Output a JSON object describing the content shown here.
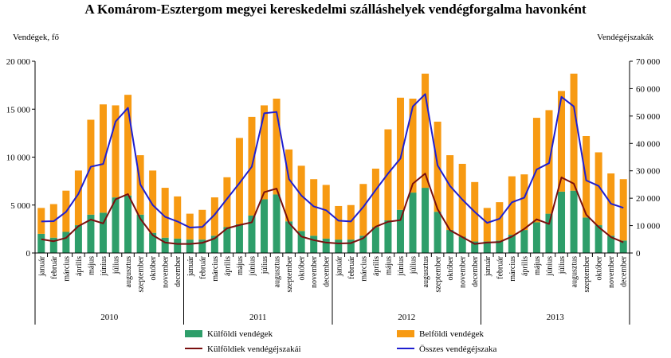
{
  "chart_data": {
    "type": "bar",
    "title": "A Komárom-Esztergom megyei kereskedelmi szálláshelyek vendégforgalma havonként",
    "y_left_label": "Vendégek, fő",
    "y_right_label": "Vendégéjszakák",
    "y_left_range": [
      0,
      20000
    ],
    "y_right_range": [
      0,
      70000
    ],
    "y_left_ticks": [
      "0",
      "5 000",
      "10 000",
      "15 000",
      "20 000"
    ],
    "y_right_ticks": [
      "0",
      "10 000",
      "20 000",
      "30 000",
      "40 000",
      "50 000",
      "60 000",
      "70 000"
    ],
    "months": [
      "január",
      "február",
      "március",
      "április",
      "május",
      "június",
      "július",
      "augusztus",
      "szeptember",
      "október",
      "november",
      "december"
    ],
    "years": [
      "2010",
      "2011",
      "2012",
      "2013"
    ],
    "bar_stack": "stacked",
    "series": [
      {
        "name": "Külföldi vendégek",
        "kind": "bar",
        "axis": "left",
        "color": "#2e9e6a",
        "values": [
          2000,
          1600,
          2200,
          2900,
          4000,
          4200,
          5800,
          6000,
          4000,
          2100,
          1600,
          1500,
          1400,
          1400,
          1800,
          2700,
          3000,
          3900,
          5600,
          6100,
          3300,
          2300,
          1800,
          1500,
          1400,
          1400,
          1800,
          2700,
          3400,
          4500,
          6300,
          6800,
          4300,
          2400,
          1700,
          1200,
          1200,
          1300,
          1900,
          2400,
          3200,
          4100,
          6400,
          6500,
          3700,
          2900,
          1800,
          1300
        ]
      },
      {
        "name": "Belföldi vendégek",
        "kind": "bar",
        "axis": "left",
        "color": "#f79a12",
        "values": [
          2700,
          3500,
          4300,
          5700,
          9900,
          11300,
          9600,
          10500,
          6200,
          6500,
          5200,
          4400,
          2700,
          3100,
          4000,
          5200,
          9000,
          10300,
          9800,
          10000,
          7500,
          6800,
          5900,
          5600,
          3500,
          3600,
          5400,
          6100,
          9500,
          11700,
          9800,
          11900,
          9400,
          7800,
          7600,
          6200,
          3500,
          4000,
          6100,
          5800,
          10900,
          10800,
          10500,
          12200,
          8500,
          7600,
          6500,
          6400
        ]
      },
      {
        "name": "Külföldiek vendégéjszakái",
        "kind": "line",
        "axis": "right",
        "color": "#7a0f0f",
        "values": [
          5000,
          4300,
          5500,
          9800,
          12200,
          10800,
          19600,
          21500,
          12500,
          6500,
          3800,
          3300,
          3300,
          3700,
          5300,
          9000,
          10200,
          11200,
          22200,
          23500,
          11000,
          6000,
          4700,
          3800,
          3500,
          3600,
          5400,
          9600,
          11400,
          12000,
          25300,
          29000,
          16000,
          8300,
          5800,
          3300,
          3800,
          4000,
          6000,
          8800,
          12300,
          10600,
          27600,
          25300,
          14000,
          9500,
          5800,
          3900
        ]
      },
      {
        "name": "Összes vendégéjszaka",
        "kind": "line",
        "axis": "right",
        "color": "#1f1fd0",
        "values": [
          11500,
          11600,
          15000,
          21600,
          31500,
          32500,
          48000,
          53000,
          25000,
          17500,
          13200,
          11500,
          9300,
          9500,
          14000,
          19800,
          25500,
          31500,
          51000,
          51500,
          27000,
          21000,
          17000,
          15600,
          11800,
          11500,
          16800,
          23000,
          29000,
          34500,
          53500,
          58000,
          32000,
          24500,
          19500,
          15000,
          11000,
          12500,
          18500,
          20200,
          30500,
          32800,
          57000,
          53500,
          26500,
          24500,
          18000,
          16500
        ]
      }
    ],
    "legend": [
      "Külföldi vendégek",
      "Belföldi vendégek",
      "Külföldiek vendégéjszakái",
      "Összes vendégéjszaka"
    ],
    "grid": false
  }
}
